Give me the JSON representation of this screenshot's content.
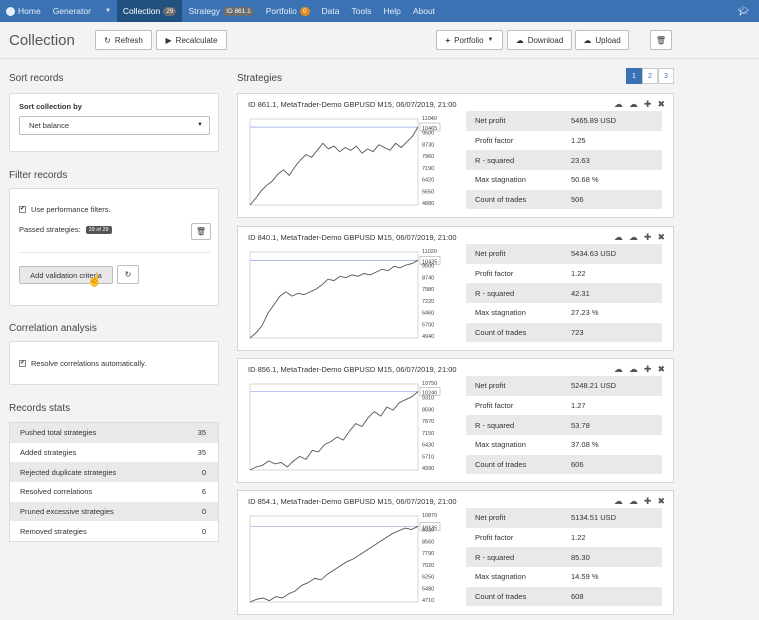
{
  "nav": {
    "home": "Home",
    "generator": "Generator",
    "collection": "Collection",
    "collection_count": "29",
    "strategy": "Strategy",
    "strategy_id": "ID 861.1",
    "portfolio": "Portfolio",
    "portfolio_count": "0",
    "data": "Data",
    "tools": "Tools",
    "help": "Help",
    "about": "About"
  },
  "toolbar": {
    "title": "Collection",
    "refresh": "Refresh",
    "recalculate": "Recalculate",
    "portfolio": "Portfolio",
    "download": "Download",
    "upload": "Upload"
  },
  "sort": {
    "section_title": "Sort records",
    "label": "Sort collection by",
    "selected": "Net balance"
  },
  "filter": {
    "section_title": "Filter records",
    "use_perf": "Use performance filters.",
    "passed_label": "Passed strategies:",
    "passed_badge": "29 of 29",
    "add_validation": "Add validation criteria"
  },
  "correlation": {
    "section_title": "Correlation analysis",
    "resolve": "Resolve correlations automatically."
  },
  "stats": {
    "section_title": "Records stats",
    "rows": [
      {
        "label": "Pushed total strategies",
        "value": "35"
      },
      {
        "label": "Added strategies",
        "value": "35"
      },
      {
        "label": "Rejected duplicate strategies",
        "value": "0"
      },
      {
        "label": "Resolved correlations",
        "value": "6"
      },
      {
        "label": "Pruned excessive strategies",
        "value": "0"
      },
      {
        "label": "Removed strategies",
        "value": "0"
      }
    ]
  },
  "strategies": {
    "section_title": "Strategies",
    "pages": [
      "1",
      "2",
      "3"
    ],
    "metric_labels": [
      "Net profit",
      "Profit factor",
      "R - squared",
      "Max stagnation",
      "Count of trades"
    ],
    "cards": [
      {
        "header": "ID 861.1, MetaTrader-Demo GBPUSD M15, 06/07/2019, 21:00",
        "metrics": [
          "5465.89 USD",
          "1.25",
          "23.63",
          "50.68 %",
          "506"
        ],
        "y_ticks": [
          "11040",
          "10465",
          "9500",
          "8730",
          "7960",
          "7190",
          "6420",
          "5650",
          "4880"
        ],
        "equity": [
          4880,
          5350,
          5900,
          6300,
          6600,
          7100,
          7400,
          7000,
          7600,
          8100,
          8500,
          8300,
          8800,
          9300,
          8900,
          9100,
          8700,
          9000,
          8800,
          9100,
          8600,
          8900,
          8700,
          9200,
          9000,
          8800,
          9300,
          9000,
          9400,
          9800,
          10465
        ]
      },
      {
        "header": "ID 840.1, MetaTrader-Demo GBPUSD M15, 06/07/2019, 21:00",
        "metrics": [
          "5434.63 USD",
          "1.22",
          "42.31",
          "27.23 %",
          "723"
        ],
        "y_ticks": [
          "11020",
          "10435",
          "9500",
          "8740",
          "7980",
          "7220",
          "6460",
          "5700",
          "4940"
        ],
        "equity": [
          4940,
          5300,
          5800,
          6700,
          7300,
          7900,
          8200,
          7900,
          8100,
          8000,
          8200,
          8400,
          8700,
          9100,
          9000,
          9300,
          9200,
          9400,
          9300,
          9500,
          9400,
          9600,
          9800,
          9700,
          10000,
          9900,
          10100,
          10200,
          10435
        ]
      },
      {
        "header": "ID 856.1, MetaTrader-Demo GBPUSD M15, 06/07/2019, 21:00",
        "metrics": [
          "5248.21 USD",
          "1.27",
          "53.78",
          "37.08 %",
          "606"
        ],
        "y_ticks": [
          "10750",
          "10240",
          "9310",
          "8590",
          "7870",
          "7150",
          "6430",
          "5710",
          "4990"
        ],
        "equity": [
          4990,
          5200,
          5300,
          5600,
          5400,
          5500,
          5200,
          5600,
          5900,
          5700,
          6300,
          6200,
          6700,
          6900,
          7200,
          7000,
          7600,
          8100,
          7900,
          8500,
          8900,
          8600,
          9200,
          9000,
          9500,
          9700,
          9900,
          10240
        ]
      },
      {
        "header": "ID 854.1, MetaTrader-Demo GBPUSD M15, 06/07/2019, 21:00",
        "metrics": [
          "5134.51 USD",
          "1.22",
          "85.30",
          "14.59 %",
          "608"
        ],
        "y_ticks": [
          "10870",
          "10135",
          "9330",
          "8560",
          "7790",
          "7020",
          "6250",
          "5480",
          "4710"
        ],
        "equity": [
          4710,
          4900,
          5000,
          4800,
          5100,
          5000,
          5300,
          5500,
          5900,
          6100,
          6400,
          6300,
          6700,
          7000,
          7300,
          7600,
          7800,
          8100,
          8400,
          8700,
          9000,
          9300,
          9600,
          9800,
          10000,
          9900,
          10135
        ]
      }
    ]
  }
}
